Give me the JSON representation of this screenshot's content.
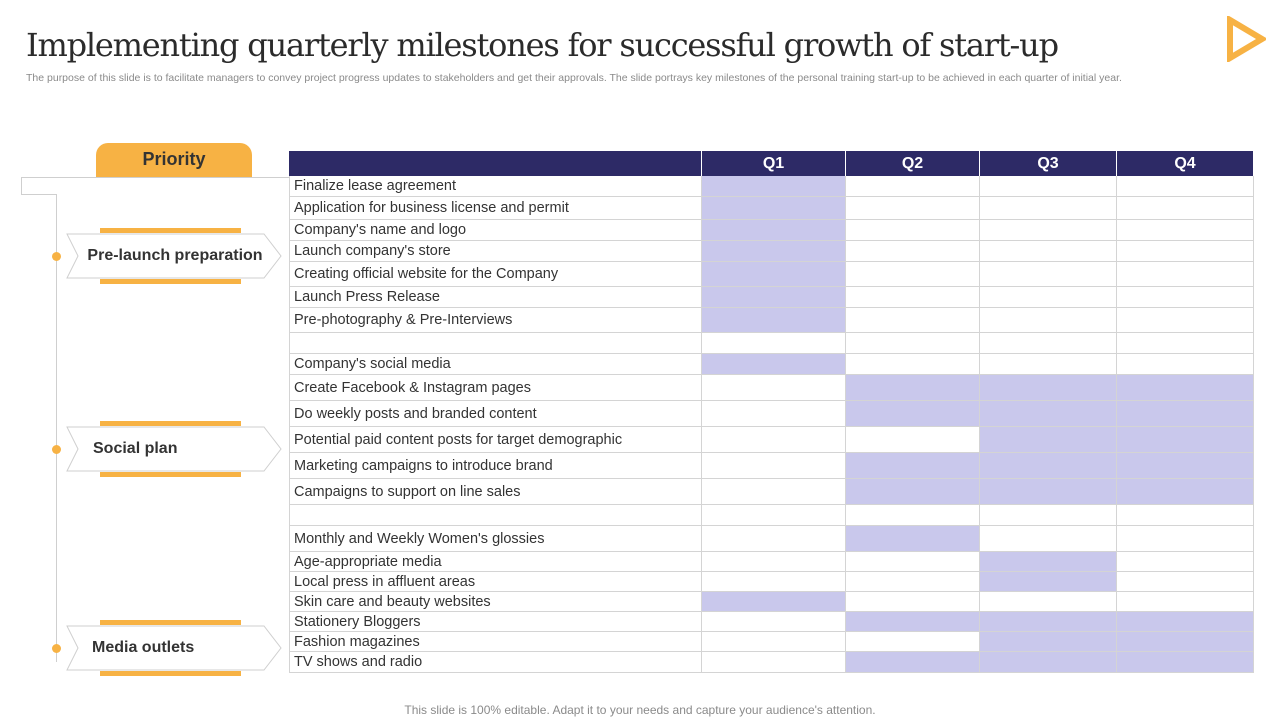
{
  "title": "Implementing quarterly milestones for successful growth of start-up",
  "subtitle": "The purpose of this slide is to facilitate managers to convey project progress updates to stakeholders and get their approvals. The slide portrays key milestones of the personal training start-up to be achieved in each quarter of initial year.",
  "priority_label": "Priority",
  "categories": [
    "Pre-launch preparation",
    "Social plan",
    "Media outlets"
  ],
  "quarters": [
    "Q1",
    "Q2",
    "Q3",
    "Q4"
  ],
  "rows": [
    {
      "task": "Finalize lease agreement",
      "q": [
        1,
        0,
        0,
        0
      ]
    },
    {
      "task": "Application for business license and permit",
      "q": [
        1,
        0,
        0,
        0
      ]
    },
    {
      "task": "Company's name and logo",
      "q": [
        1,
        0,
        0,
        0
      ]
    },
    {
      "task": "Launch company's store",
      "q": [
        1,
        0,
        0,
        0
      ]
    },
    {
      "task": "Creating official website for the Company",
      "q": [
        1,
        0,
        0,
        0
      ]
    },
    {
      "task": "Launch Press Release",
      "q": [
        1,
        0,
        0,
        0
      ]
    },
    {
      "task": "Pre-photography & Pre-Interviews",
      "q": [
        1,
        0,
        0,
        0
      ]
    },
    {
      "task": "",
      "q": [
        0,
        0,
        0,
        0
      ]
    },
    {
      "task": "Company's social media",
      "q": [
        1,
        0,
        0,
        0
      ]
    },
    {
      "task": "Create Facebook & Instagram pages",
      "q": [
        0,
        1,
        1,
        1
      ]
    },
    {
      "task": "Do weekly posts and branded content",
      "q": [
        0,
        1,
        1,
        1
      ]
    },
    {
      "task": "Potential paid content posts for target demographic",
      "q": [
        0,
        0,
        1,
        1
      ]
    },
    {
      "task": "Marketing campaigns to introduce brand",
      "q": [
        0,
        1,
        1,
        1
      ]
    },
    {
      "task": "Campaigns to support on line sales",
      "q": [
        0,
        1,
        1,
        1
      ]
    },
    {
      "task": "",
      "q": [
        0,
        0,
        0,
        0
      ]
    },
    {
      "task": "Monthly and Weekly Women's glossies",
      "q": [
        0,
        1,
        0,
        0
      ]
    },
    {
      "task": "Age-appropriate media",
      "q": [
        0,
        0,
        1,
        0
      ]
    },
    {
      "task": "Local press in affluent areas",
      "q": [
        0,
        0,
        1,
        0
      ]
    },
    {
      "task": "Skin care and beauty websites",
      "q": [
        1,
        0,
        0,
        0
      ]
    },
    {
      "task": "Stationery Bloggers",
      "q": [
        0,
        1,
        1,
        1
      ]
    },
    {
      "task": "Fashion magazines",
      "q": [
        0,
        0,
        1,
        1
      ]
    },
    {
      "task": "TV shows and radio",
      "q": [
        0,
        1,
        1,
        1
      ]
    }
  ],
  "footer": "This slide is 100% editable. Adapt it to your needs and capture your audience's attention.",
  "colors": {
    "header": "#2d2a66",
    "highlight": "#c9c8ec",
    "accent": "#f7b244"
  }
}
